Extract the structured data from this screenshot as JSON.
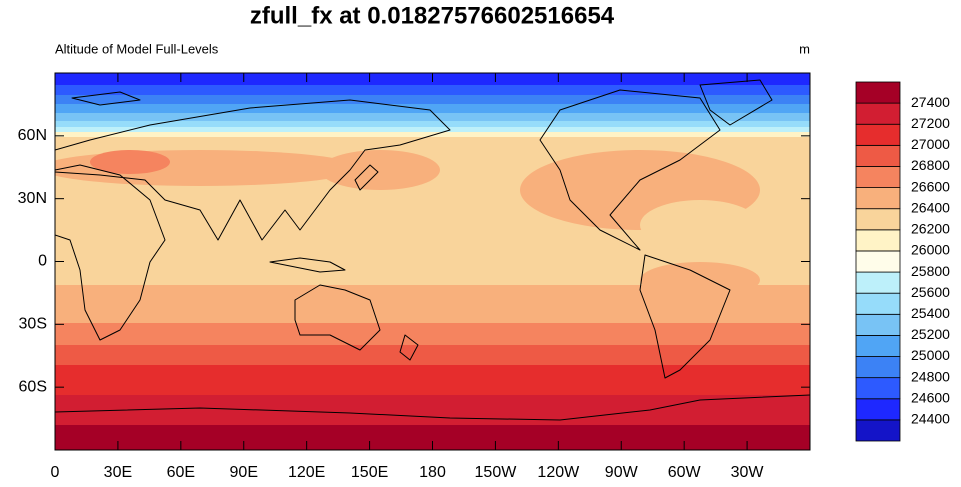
{
  "chart_data": {
    "type": "contour-map",
    "title": "zfull_fx at 0.01827576602516654",
    "subtitle_left": "Altitude of Model Full-Levels",
    "subtitle_right": "m",
    "xlim": [
      0,
      360
    ],
    "ylim": [
      -90,
      90
    ],
    "xticks": [
      0,
      {
        "value": 30,
        "label": "30E"
      },
      {
        "value": 60,
        "label": "60E"
      },
      {
        "value": 90,
        "label": "90E"
      },
      {
        "value": 120,
        "label": "120E"
      },
      {
        "value": 150,
        "label": "150E"
      },
      180,
      {
        "value": 210,
        "label": "150W"
      },
      {
        "value": 240,
        "label": "120W"
      },
      {
        "value": 270,
        "label": "90W"
      },
      {
        "value": 300,
        "label": "60W"
      },
      {
        "value": 330,
        "label": "30W"
      }
    ],
    "yticks": [
      {
        "value": 60,
        "label": "60N"
      },
      {
        "value": 30,
        "label": "30N"
      },
      0,
      {
        "value": -30,
        "label": "30S"
      },
      {
        "value": -60,
        "label": "60S"
      }
    ],
    "levels": [
      24400,
      24600,
      24800,
      25000,
      25200,
      25400,
      25600,
      25800,
      26000,
      26200,
      26400,
      26600,
      26800,
      27000,
      27200,
      27400
    ],
    "colors": [
      "#1414c8",
      "#1e28ff",
      "#2d5aff",
      "#3c82f5",
      "#50a5f5",
      "#78c3f5",
      "#96dcfa",
      "#bdf0fa",
      "#fffdea",
      "#fff3c6",
      "#f9d49b",
      "#f8b07c",
      "#f5845f",
      "#ee5a45",
      "#e62d2d",
      "#d21e32",
      "#a50026"
    ]
  }
}
